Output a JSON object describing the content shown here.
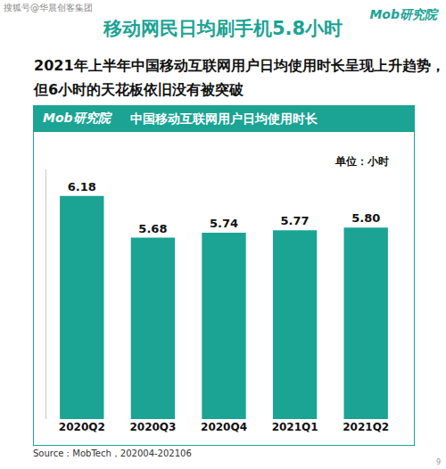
{
  "header": {
    "watermark": "搜狐号@华晨创客集团",
    "title": "移动网民日均刷手机5.8小时",
    "logo": "Mob研究院",
    "subtitle": [
      "2021年上半年中国移动互联网用户日均使用时长呈现上升趋势，",
      "但6小时的天花板依旧没有被突破"
    ],
    "panel_logo": "Mob研究院"
  },
  "chart_data": {
    "type": "bar",
    "title": "中国移动互联网用户日均使用时长",
    "annotations": [
      "单位：小时"
    ],
    "categories": [
      "2020Q2",
      "2020Q3",
      "2020Q4",
      "2021Q1",
      "2021Q2"
    ],
    "values": [
      6.18,
      5.68,
      5.74,
      5.77,
      5.8
    ],
    "value_labels": [
      "6.18",
      "5.68",
      "5.74",
      "5.77",
      "5.80"
    ],
    "color": "#1ba394",
    "ylim": [
      3.5,
      6.5
    ],
    "yticks": [],
    "grid": false,
    "data_labels": true,
    "tick_labels": "x"
  },
  "footer": {
    "source": "Source：MobTech，202004-202106",
    "page": "9"
  }
}
